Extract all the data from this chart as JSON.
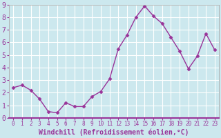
{
  "x": [
    0,
    1,
    2,
    3,
    4,
    5,
    6,
    7,
    8,
    9,
    10,
    11,
    12,
    13,
    14,
    15,
    16,
    17,
    18,
    19,
    20,
    21,
    22,
    23
  ],
  "y": [
    2.4,
    2.6,
    2.2,
    1.5,
    0.5,
    0.4,
    1.2,
    0.9,
    0.9,
    1.7,
    2.1,
    3.1,
    5.5,
    6.6,
    8.0,
    8.9,
    8.1,
    7.5,
    6.4,
    5.3,
    3.9,
    4.9,
    6.7,
    5.4
  ],
  "line_color": "#993399",
  "marker": "D",
  "markersize": 2.5,
  "linewidth": 1.0,
  "xlabel": "Windchill (Refroidissement éolien,°C)",
  "xlabel_fontsize": 7,
  "bg_color": "#cce8ee",
  "plot_bg_color": "#cce8ee",
  "grid_color": "#ffffff",
  "tick_color": "#993399",
  "spine_color": "#aaaaaa",
  "xlim": [
    -0.5,
    23.5
  ],
  "ylim": [
    0,
    9
  ],
  "xticks": [
    0,
    1,
    2,
    3,
    4,
    5,
    6,
    7,
    8,
    9,
    10,
    11,
    12,
    13,
    14,
    15,
    16,
    17,
    18,
    19,
    20,
    21,
    22,
    23
  ],
  "yticks": [
    0,
    1,
    2,
    3,
    4,
    5,
    6,
    7,
    8,
    9
  ],
  "xtick_fontsize": 5.5,
  "ytick_fontsize": 7
}
